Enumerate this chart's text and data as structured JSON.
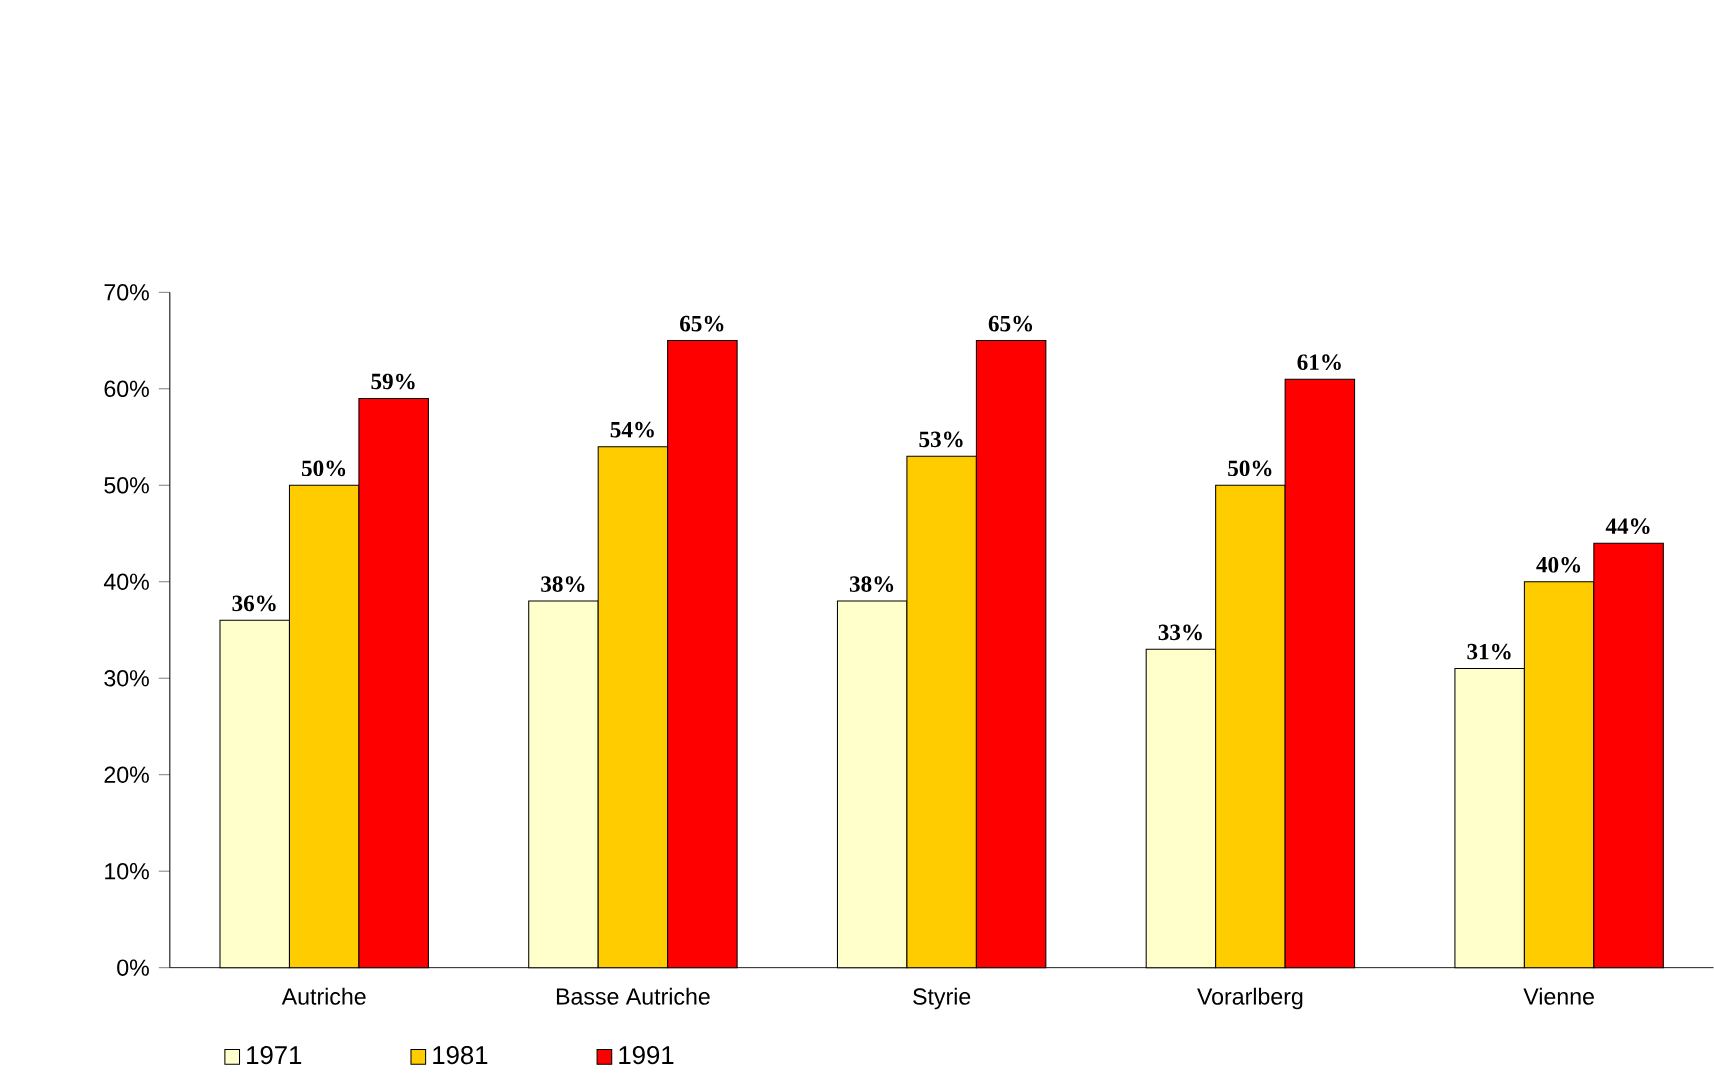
{
  "chart_data": {
    "type": "bar",
    "categories": [
      "Autriche",
      "Basse Autriche",
      "Styrie",
      "Vorarlberg",
      "Vienne"
    ],
    "series": [
      {
        "name": "1971",
        "color": "#ffffcc",
        "values": [
          36,
          38,
          38,
          33,
          31
        ],
        "value_labels": [
          "36%",
          "38%",
          "38%",
          "33%",
          "31%"
        ]
      },
      {
        "name": "1981",
        "color": "#ffcc00",
        "values": [
          50,
          54,
          53,
          50,
          40
        ],
        "value_labels": [
          "50%",
          "54%",
          "53%",
          "50%",
          "40%"
        ]
      },
      {
        "name": "1991",
        "color": "#ff0000",
        "values": [
          59,
          65,
          65,
          61,
          44
        ],
        "value_labels": [
          "59%",
          "65%",
          "65%",
          "61%",
          "44%"
        ]
      }
    ],
    "ylim": [
      0,
      70
    ],
    "yticks": [
      {
        "value": 0,
        "label": "0%"
      },
      {
        "value": 10,
        "label": "10%"
      },
      {
        "value": 20,
        "label": "20%"
      },
      {
        "value": 30,
        "label": "30%"
      },
      {
        "value": 40,
        "label": "40%"
      },
      {
        "value": 50,
        "label": "50%"
      },
      {
        "value": 60,
        "label": "60%"
      },
      {
        "value": 70,
        "label": "70%"
      }
    ],
    "grid": false,
    "legend": "bottom left"
  }
}
